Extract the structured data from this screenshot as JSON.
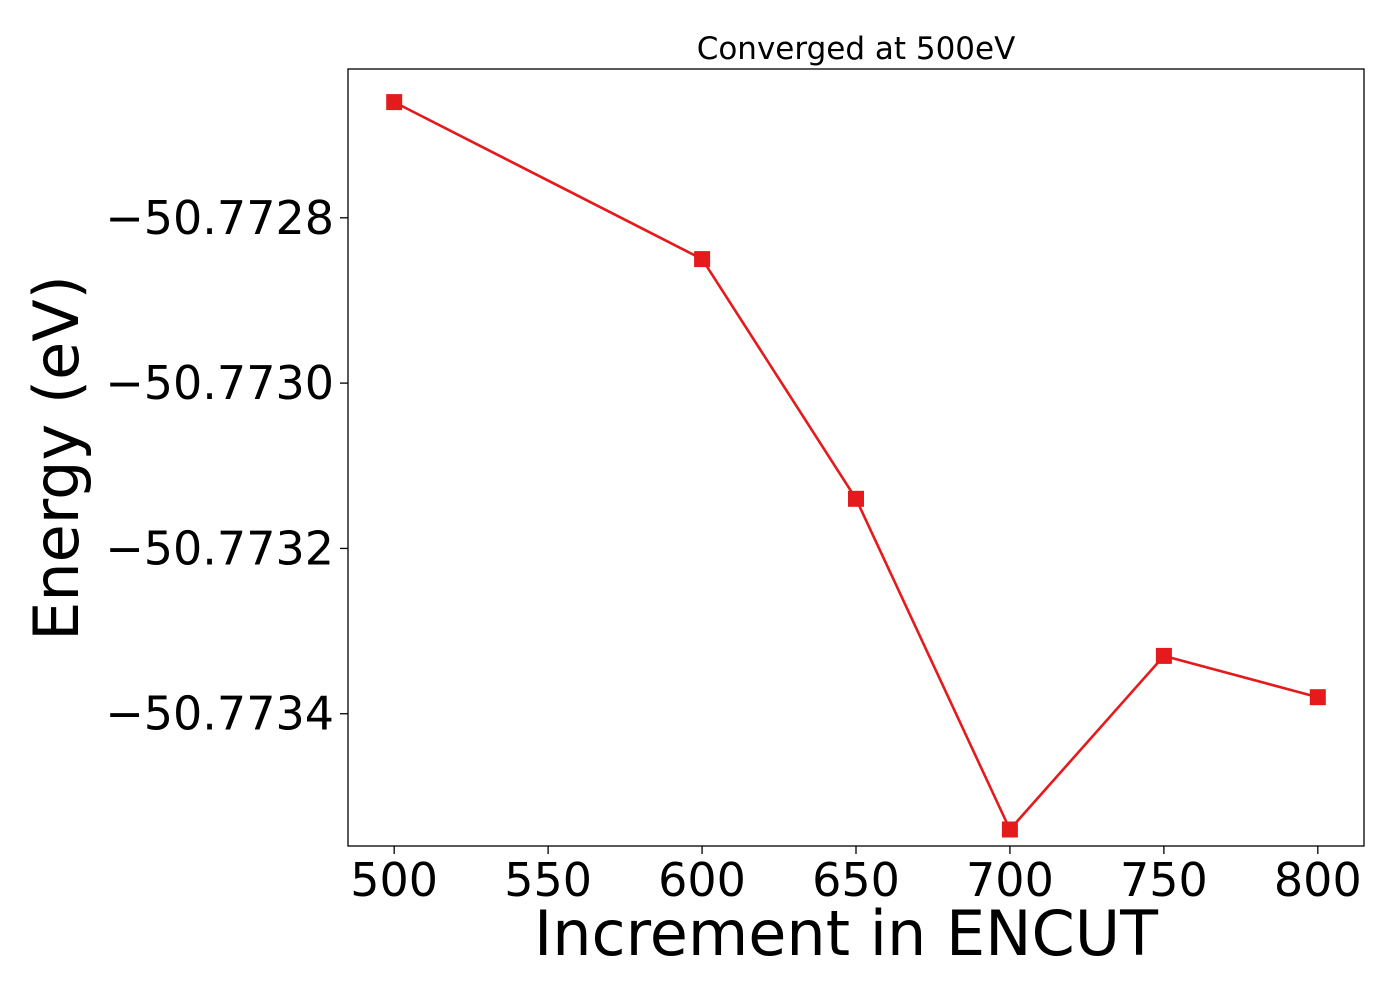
{
  "chart_data": {
    "type": "line",
    "title": "Converged at 500eV",
    "xlabel": "Increment in ENCUT",
    "ylabel": "Energy (eV)",
    "x": [
      500,
      600,
      650,
      700,
      750,
      800
    ],
    "series": [
      {
        "values": [
          -50.77266,
          -50.77285,
          -50.77314,
          -50.77354,
          -50.77333,
          -50.77338
        ],
        "color": "#e41a1c",
        "marker": "square"
      }
    ],
    "xlim": [
      485,
      815
    ],
    "ylim": [
      -50.77356,
      -50.77262
    ],
    "xticks": [
      500,
      550,
      600,
      650,
      700,
      750,
      800
    ],
    "xtick_labels": [
      "500",
      "550",
      "600",
      "650",
      "700",
      "750",
      "800"
    ],
    "yticks": [
      -50.7728,
      -50.773,
      -50.7732,
      -50.7734
    ],
    "ytick_labels": [
      "−50.7728",
      "−50.7730",
      "−50.7732",
      "−50.7734"
    ],
    "grid": false,
    "legend": "none"
  }
}
